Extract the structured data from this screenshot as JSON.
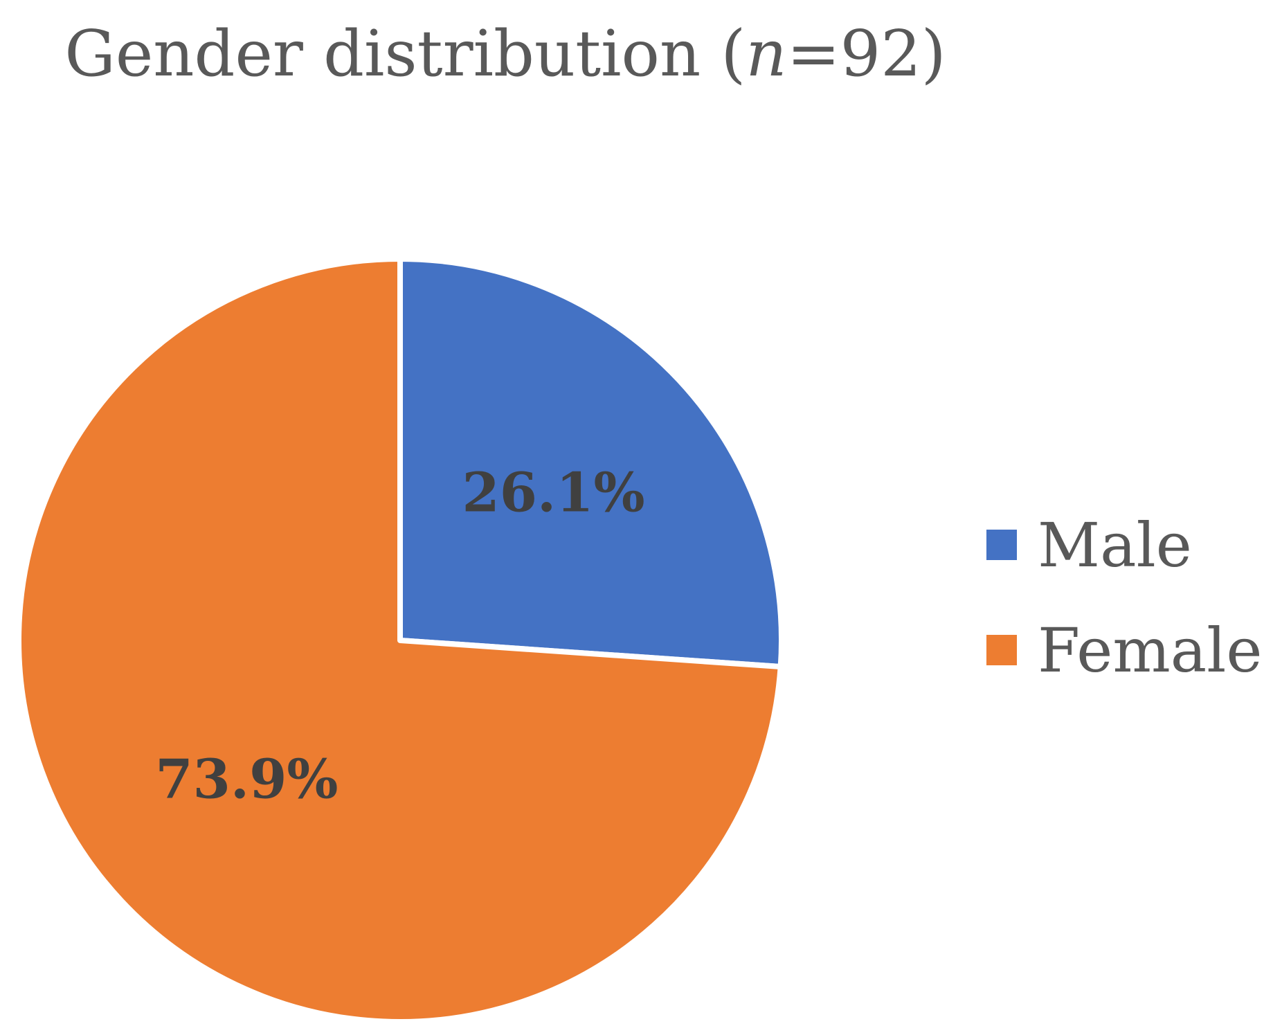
{
  "chart_data": {
    "type": "pie",
    "title": {
      "prefix": "Gender distribution (",
      "italic": "n",
      "suffix": "=92)"
    },
    "categories": [
      "Male",
      "Female"
    ],
    "values": [
      26.1,
      73.9
    ],
    "value_labels": [
      "26.1%",
      "73.9%"
    ],
    "colors": [
      "#4472C4",
      "#ED7D31"
    ],
    "legend_position": "right",
    "start_angle_deg": 0,
    "direction": "clockwise"
  }
}
